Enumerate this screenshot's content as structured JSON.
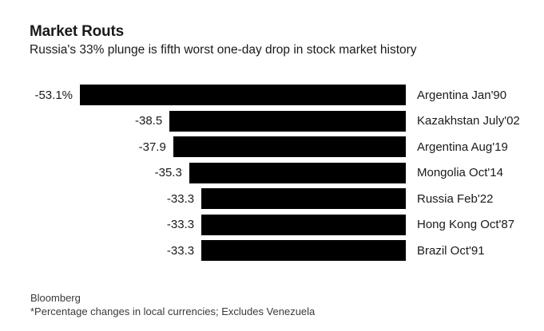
{
  "header": {
    "title": "Market Routs",
    "subtitle": "Russia's 33% plunge is fifth worst one-day drop in stock market history"
  },
  "chart_data": {
    "type": "bar",
    "orientation": "horizontal",
    "title": "Market Routs",
    "subtitle": "Russia's 33% plunge is fifth worst one-day drop in stock market history",
    "categories": [
      "Argentina Jan'90",
      "Kazakhstan July'02",
      "Argentina Aug'19",
      "Mongolia Oct'14",
      "Russia Feb'22",
      "Hong Kong Oct'87",
      "Brazil Oct'91"
    ],
    "values": [
      -53.1,
      -38.5,
      -37.9,
      -35.3,
      -33.3,
      -33.3,
      -33.3
    ],
    "value_labels": [
      "-53.1%",
      "-38.5",
      "-37.9",
      "-35.3",
      "-33.3",
      "-33.3",
      "-33.3"
    ],
    "xlabel": "",
    "ylabel": "",
    "xlim": [
      -53.1,
      0
    ],
    "units": "percent one-day change",
    "legend": false,
    "grid": false,
    "bar_color": "#000000"
  },
  "footer": {
    "source": "Bloomberg",
    "note": "*Percentage changes in local currencies; Excludes Venezuela"
  },
  "colors": {
    "background": "#ffffff",
    "bar": "#000000",
    "text": "#1a1a1a",
    "footer_text": "#3a3a3a"
  }
}
